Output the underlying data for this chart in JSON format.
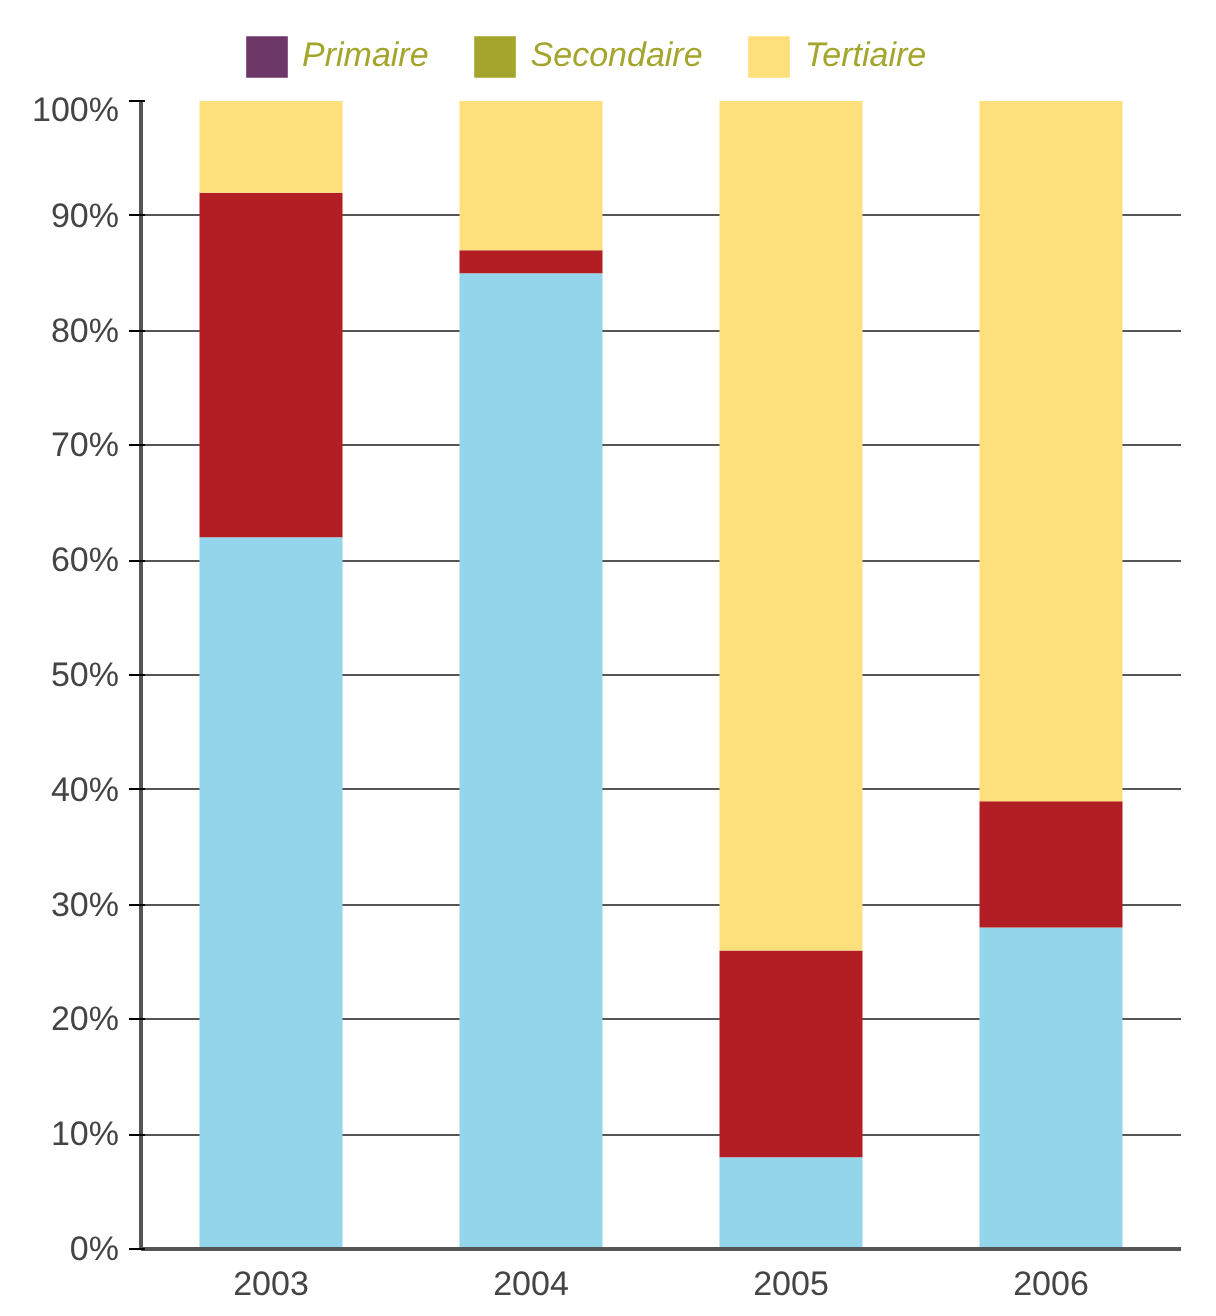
{
  "chart_data": {
    "type": "bar",
    "stacked": true,
    "categories": [
      "2003",
      "2004",
      "2005",
      "2006"
    ],
    "series": [
      {
        "color": "#93d6ec",
        "values": [
          62,
          85,
          8,
          28
        ]
      },
      {
        "color": "#b31e25",
        "values": [
          30,
          2,
          18,
          11
        ]
      },
      {
        "name": "Primaire",
        "color": "#6d3767",
        "values": [
          null,
          null,
          null,
          null
        ]
      },
      {
        "name": "Secondaire",
        "color": "#a3a52d",
        "values": [
          null,
          null,
          null,
          null
        ]
      },
      {
        "name": "Tertiaire",
        "color": "#fde07b",
        "values": [
          8,
          13,
          74,
          61
        ]
      }
    ],
    "ylim": [
      0,
      100
    ],
    "yticks": [
      {
        "value": 0,
        "label": "0%"
      },
      {
        "value": 10,
        "label": "10%"
      },
      {
        "value": 20,
        "label": "20%"
      },
      {
        "value": 30,
        "label": "30%"
      },
      {
        "value": 40,
        "label": "40%"
      },
      {
        "value": 50,
        "label": "50%"
      },
      {
        "value": 60,
        "label": "60%"
      },
      {
        "value": 70,
        "label": "70%"
      },
      {
        "value": 80,
        "label": "80%"
      },
      {
        "value": 90,
        "label": "90%"
      },
      {
        "value": 100,
        "label": "100%"
      }
    ],
    "grid": "y",
    "legend": "top"
  }
}
